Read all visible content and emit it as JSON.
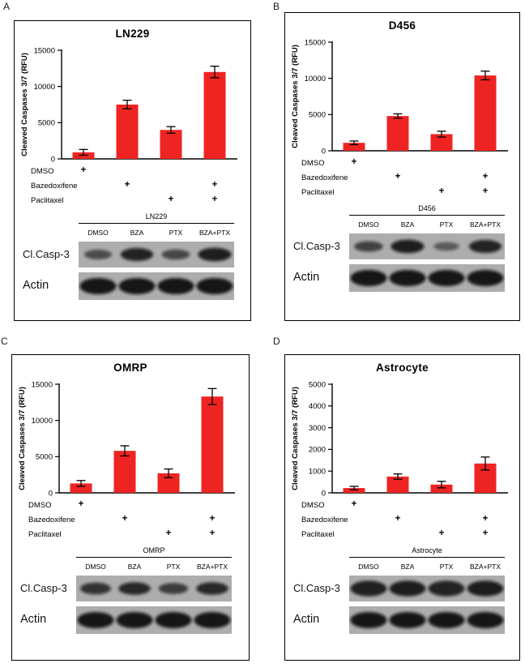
{
  "figure": {
    "plus_mark": "+",
    "blot_bg": "#adadad",
    "band_color": "#0a0a0a",
    "panels": [
      {
        "letter": "A",
        "title": "LN229",
        "chart_data": {
          "type": "bar",
          "categories": [
            "DMSO",
            "BZA",
            "PTX",
            "BZA+PTX"
          ],
          "values": [
            900,
            7500,
            4000,
            12000
          ],
          "errors": [
            400,
            600,
            450,
            800
          ],
          "title": "LN229",
          "xlabel": "",
          "ylabel": "Cleaved Caspases 3/7 (RFU)",
          "ylim": [
            0,
            15000
          ],
          "yticks": [
            0,
            5000,
            10000,
            15000
          ],
          "bar_color": "#ee2423"
        },
        "treatment_rows": [
          {
            "label": "DMSO",
            "marks": [
              true,
              false,
              false,
              false
            ]
          },
          {
            "label": "Bazedoxifene",
            "marks": [
              false,
              true,
              false,
              true
            ]
          },
          {
            "label": "Paclitaxel",
            "marks": [
              false,
              false,
              true,
              true
            ]
          }
        ],
        "blot": {
          "title": "LN229",
          "lanes": [
            "DMSO",
            "BZA",
            "PTX",
            "BZA+PTX"
          ],
          "rows": [
            {
              "label": "Cl.Casp-3",
              "band_style": "thin",
              "intensities": [
                0.5,
                0.9,
                0.55,
                0.95
              ]
            },
            {
              "label": "Actin",
              "band_style": "thick",
              "intensities": [
                0.97,
                0.97,
                0.97,
                0.97
              ]
            }
          ]
        }
      },
      {
        "letter": "B",
        "title": "D456",
        "chart_data": {
          "type": "bar",
          "categories": [
            "DMSO",
            "BZA",
            "PTX",
            "BZA+PTX"
          ],
          "values": [
            1100,
            4800,
            2300,
            10400
          ],
          "errors": [
            250,
            300,
            400,
            600
          ],
          "title": "D456",
          "xlabel": "",
          "ylabel": "Cleaved Caspases 3/7 (RFU)",
          "ylim": [
            0,
            15000
          ],
          "yticks": [
            0,
            5000,
            10000,
            15000
          ],
          "bar_color": "#ee2423"
        },
        "treatment_rows": [
          {
            "label": "DMSO",
            "marks": [
              true,
              false,
              false,
              false
            ]
          },
          {
            "label": "Bazedoxifene",
            "marks": [
              false,
              true,
              false,
              true
            ]
          },
          {
            "label": "Paclitaxel",
            "marks": [
              false,
              false,
              true,
              true
            ]
          }
        ],
        "blot": {
          "title": "D456",
          "lanes": [
            "DMSO",
            "BZA",
            "PTX",
            "BZA+PTX"
          ],
          "rows": [
            {
              "label": "Cl.Casp-3",
              "band_style": "thin",
              "intensities": [
                0.6,
                0.95,
                0.35,
                0.9
              ]
            },
            {
              "label": "Actin",
              "band_style": "thick",
              "intensities": [
                0.97,
                0.97,
                0.97,
                0.97
              ]
            }
          ]
        }
      },
      {
        "letter": "C",
        "title": "OMRP",
        "chart_data": {
          "type": "bar",
          "categories": [
            "DMSO",
            "BZA",
            "PTX",
            "BZA+PTX"
          ],
          "values": [
            1300,
            5800,
            2700,
            13300
          ],
          "errors": [
            400,
            700,
            600,
            1100
          ],
          "title": "OMRP",
          "xlabel": "",
          "ylabel": "Cleaved Caspases 3/7 (RFU)",
          "ylim": [
            0,
            15000
          ],
          "yticks": [
            0,
            5000,
            10000,
            15000
          ],
          "bar_color": "#ee2423"
        },
        "treatment_rows": [
          {
            "label": "DMSO",
            "marks": [
              true,
              false,
              false,
              false
            ]
          },
          {
            "label": "Bazedoxifene",
            "marks": [
              false,
              true,
              false,
              true
            ]
          },
          {
            "label": "Paclitaxel",
            "marks": [
              false,
              false,
              true,
              true
            ]
          }
        ],
        "blot": {
          "title": "OMRP",
          "lanes": [
            "DMSO",
            "BZA",
            "PTX",
            "BZA+PTX"
          ],
          "rows": [
            {
              "label": "Cl.Casp-3",
              "band_style": "thin",
              "intensities": [
                0.75,
                0.85,
                0.65,
                0.85
              ]
            },
            {
              "label": "Actin",
              "band_style": "thick",
              "intensities": [
                0.97,
                0.97,
                0.97,
                0.97
              ]
            }
          ]
        }
      },
      {
        "letter": "D",
        "title": "Astrocyte",
        "chart_data": {
          "type": "bar",
          "categories": [
            "DMSO",
            "BZA",
            "PTX",
            "BZA+PTX"
          ],
          "values": [
            220,
            750,
            380,
            1350
          ],
          "errors": [
            80,
            120,
            150,
            300
          ],
          "title": "Astrocyte",
          "xlabel": "",
          "ylabel": "Cleaved Caspases 3/7 (RFU)",
          "ylim": [
            0,
            5000
          ],
          "yticks": [
            0,
            1000,
            2000,
            3000,
            4000,
            5000
          ],
          "bar_color": "#ee2423"
        },
        "treatment_rows": [
          {
            "label": "DMSO",
            "marks": [
              true,
              false,
              false,
              false
            ]
          },
          {
            "label": "Bazedoxifene",
            "marks": [
              false,
              true,
              false,
              true
            ]
          },
          {
            "label": "Paclitaxel",
            "marks": [
              false,
              false,
              true,
              true
            ]
          }
        ],
        "blot": {
          "title": "Astrocyte",
          "lanes": [
            "DMSO",
            "BZA",
            "PTX",
            "BZA+PTX"
          ],
          "rows": [
            {
              "label": "Cl.Casp-3",
              "band_style": "thick",
              "intensities": [
                0.9,
                0.92,
                0.88,
                0.92
              ]
            },
            {
              "label": "Actin",
              "band_style": "thick",
              "intensities": [
                0.97,
                0.97,
                0.97,
                0.97
              ]
            }
          ]
        }
      }
    ]
  }
}
